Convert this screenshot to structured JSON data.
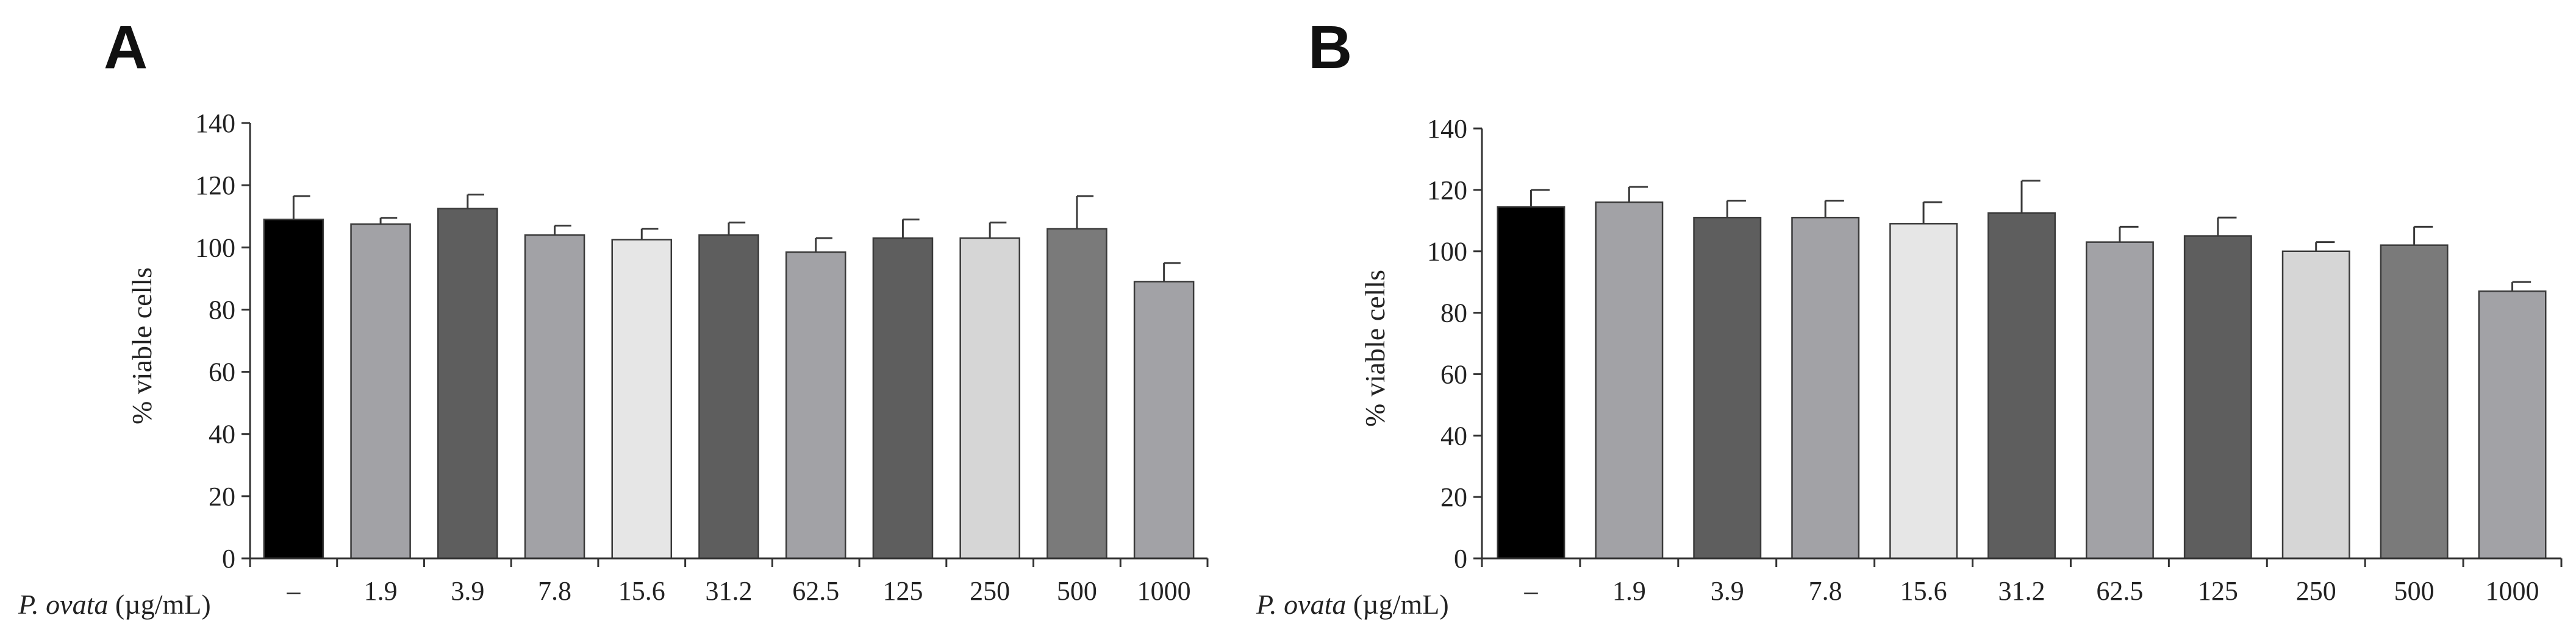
{
  "chart_data": [
    {
      "type": "bar",
      "panel": "A",
      "ylabel": "% viable cells",
      "xlabel_italic": "P. ovata",
      "xlabel_unit": " (µg/mL)",
      "ylim": [
        0,
        140
      ],
      "yticks": [
        "0",
        "20",
        "40",
        "60",
        "80",
        "100",
        "120",
        "140"
      ],
      "ytick_values": [
        0,
        20,
        40,
        60,
        80,
        100,
        120,
        140
      ],
      "categories": [
        "–",
        "1.9",
        "3.9",
        "7.8",
        "15.6",
        "31.2",
        "62.5",
        "125",
        "250",
        "500",
        "1000"
      ],
      "values": [
        109,
        107.5,
        112.5,
        104,
        102.5,
        104,
        98.5,
        103,
        103,
        106,
        89
      ],
      "errors": [
        7.5,
        2,
        4.5,
        3,
        3.5,
        4,
        4.5,
        6,
        5,
        10.5,
        6
      ],
      "colors": [
        "#000000",
        "#a2a2a6",
        "#5e5e5e",
        "#a2a2a6",
        "#e6e6e6",
        "#5e5e5e",
        "#a2a2a6",
        "#5e5e5e",
        "#d6d6d6",
        "#7a7a7a",
        "#a2a2a6"
      ]
    },
    {
      "type": "bar",
      "panel": "B",
      "ylabel": "% viable cells",
      "xlabel_italic": "P. ovata",
      "xlabel_unit": " (µg/mL)",
      "ylim": [
        0,
        140
      ],
      "yticks": [
        "0",
        "20",
        "40",
        "60",
        "80",
        "100",
        "120",
        "140"
      ],
      "ytick_values": [
        0,
        20,
        40,
        60,
        80,
        100,
        120,
        140
      ],
      "categories": [
        "–",
        "1.9",
        "3.9",
        "7.8",
        "15.6",
        "31.2",
        "62.5",
        "125",
        "250",
        "500",
        "1000"
      ],
      "values": [
        114.5,
        116,
        111,
        111,
        109,
        112.5,
        103,
        105,
        100,
        102,
        87
      ],
      "errors": [
        5.5,
        5,
        5.5,
        5.5,
        7,
        10.5,
        5,
        6,
        3,
        6,
        3
      ],
      "colors": [
        "#000000",
        "#a2a2a6",
        "#5e5e5e",
        "#a2a2a6",
        "#e6e6e6",
        "#5e5e5e",
        "#a2a2a6",
        "#5e5e5e",
        "#d6d6d6",
        "#7a7a7a",
        "#a2a2a6"
      ]
    }
  ]
}
